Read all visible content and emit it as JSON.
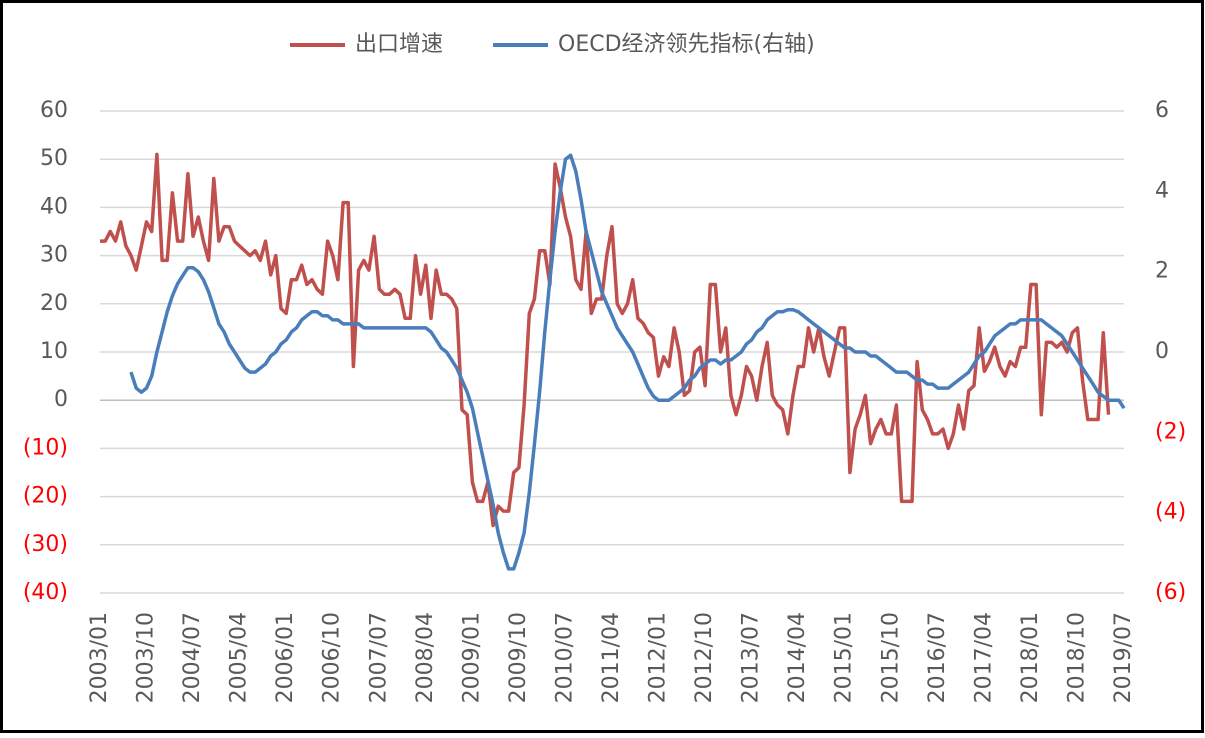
{
  "chart_data": {
    "type": "line",
    "categories": [
      "2003/01",
      null,
      null,
      null,
      null,
      null,
      null,
      null,
      null,
      "2003/10",
      null,
      null,
      null,
      null,
      null,
      null,
      null,
      null,
      "2004/07",
      null,
      null,
      null,
      null,
      null,
      null,
      null,
      null,
      "2005/04",
      null,
      null,
      null,
      null,
      null,
      null,
      null,
      null,
      "2006/01",
      null,
      null,
      null,
      null,
      null,
      null,
      null,
      null,
      "2006/10",
      null,
      null,
      null,
      null,
      null,
      null,
      null,
      null,
      "2007/07",
      null,
      null,
      null,
      null,
      null,
      null,
      null,
      null,
      "2008/04",
      null,
      null,
      null,
      null,
      null,
      null,
      null,
      null,
      "2009/01",
      null,
      null,
      null,
      null,
      null,
      null,
      null,
      null,
      "2009/10",
      null,
      null,
      null,
      null,
      null,
      null,
      null,
      null,
      "2010/07",
      null,
      null,
      null,
      null,
      null,
      null,
      null,
      null,
      "2011/04",
      null,
      null,
      null,
      null,
      null,
      null,
      null,
      null,
      "2012/01",
      null,
      null,
      null,
      null,
      null,
      null,
      null,
      null,
      "2012/10",
      null,
      null,
      null,
      null,
      null,
      null,
      null,
      null,
      "2013/07",
      null,
      null,
      null,
      null,
      null,
      null,
      null,
      null,
      "2014/04",
      null,
      null,
      null,
      null,
      null,
      null,
      null,
      null,
      "2015/01",
      null,
      null,
      null,
      null,
      null,
      null,
      null,
      null,
      "2015/10",
      null,
      null,
      null,
      null,
      null,
      null,
      null,
      null,
      "2016/07",
      null,
      null,
      null,
      null,
      null,
      null,
      null,
      null,
      "2017/04",
      null,
      null,
      null,
      null,
      null,
      null,
      null,
      null,
      "2018/01",
      null,
      null,
      null,
      null,
      null,
      null,
      null,
      null,
      "2018/10",
      null,
      null,
      null,
      null,
      null,
      null,
      null,
      null,
      "2019/07"
    ],
    "series": [
      {
        "name": "出口增速",
        "color": "#c0504d",
        "values": [
          33,
          33,
          35,
          33,
          37,
          32,
          30,
          27,
          32,
          37,
          35,
          51,
          29,
          29,
          43,
          33,
          33,
          47,
          34,
          38,
          33,
          29,
          46,
          33,
          36,
          36,
          33,
          32,
          31,
          30,
          31,
          29,
          33,
          26,
          30,
          19,
          18,
          25,
          25,
          28,
          24,
          25,
          23,
          22,
          33,
          30,
          25,
          41,
          41,
          7,
          27,
          29,
          27,
          34,
          23,
          22,
          22,
          23,
          22,
          17,
          17,
          30,
          22,
          28,
          17,
          27,
          22,
          22,
          21,
          19,
          -2,
          -3,
          -17,
          -21,
          -21,
          -17,
          -26,
          -22,
          -23,
          -23,
          -15,
          -14,
          -1,
          18,
          21,
          31,
          31,
          24,
          49,
          44,
          38,
          34,
          25,
          23,
          35,
          18,
          21,
          21,
          30,
          36,
          20,
          18,
          20,
          25,
          17,
          16,
          14,
          13,
          5,
          9,
          7,
          15,
          10,
          1,
          2,
          10,
          11,
          3,
          24,
          24,
          10,
          15,
          1,
          -3,
          1,
          7,
          5,
          0,
          7,
          12,
          1,
          -1,
          -2,
          -7,
          1,
          7,
          7,
          15,
          10,
          15,
          9,
          5,
          10,
          15,
          15,
          -15,
          -6,
          -3,
          1,
          -9,
          -6,
          -4,
          -7,
          -7,
          -1,
          -21,
          -21,
          -21,
          8,
          -2,
          -4,
          -7,
          -7,
          -6,
          -10,
          -7,
          -1,
          -6,
          2,
          3,
          15,
          6,
          8,
          11,
          7,
          5,
          8,
          7,
          11,
          11,
          24,
          24,
          -3,
          12,
          12,
          11,
          12,
          10,
          14,
          15,
          4,
          -4,
          -4,
          -4,
          14,
          -3,
          null,
          null,
          null
        ]
      },
      {
        "name": "OECD经济领先指标(右轴)",
        "color": "#4a7ebb",
        "axis": "y2",
        "values": [
          null,
          null,
          null,
          null,
          null,
          null,
          -0.5,
          -0.9,
          -1.0,
          -0.9,
          -0.6,
          0.0,
          0.5,
          1.0,
          1.4,
          1.7,
          1.9,
          2.1,
          2.1,
          2.0,
          1.8,
          1.5,
          1.1,
          0.7,
          0.5,
          0.2,
          0.0,
          -0.2,
          -0.4,
          -0.5,
          -0.5,
          -0.4,
          -0.3,
          -0.1,
          0.0,
          0.2,
          0.3,
          0.5,
          0.6,
          0.8,
          0.9,
          1.0,
          1.0,
          0.9,
          0.9,
          0.8,
          0.8,
          0.7,
          0.7,
          0.7,
          0.7,
          0.6,
          0.6,
          0.6,
          0.6,
          0.6,
          0.6,
          0.6,
          0.6,
          0.6,
          0.6,
          0.6,
          0.6,
          0.6,
          0.5,
          0.3,
          0.1,
          0.0,
          -0.2,
          -0.4,
          -0.7,
          -1.0,
          -1.4,
          -2.0,
          -2.6,
          -3.2,
          -3.8,
          -4.5,
          -5.0,
          -5.4,
          -5.4,
          -5.0,
          -4.5,
          -3.5,
          -2.3,
          -1.0,
          0.5,
          1.8,
          3.0,
          4.0,
          4.8,
          4.9,
          4.5,
          3.8,
          3.0,
          2.5,
          2.0,
          1.5,
          1.2,
          0.9,
          0.6,
          0.4,
          0.2,
          0.0,
          -0.3,
          -0.6,
          -0.9,
          -1.1,
          -1.2,
          -1.2,
          -1.2,
          -1.1,
          -1.0,
          -0.9,
          -0.7,
          -0.6,
          -0.4,
          -0.3,
          -0.2,
          -0.2,
          -0.3,
          -0.2,
          -0.2,
          -0.1,
          0.0,
          0.2,
          0.3,
          0.5,
          0.6,
          0.8,
          0.9,
          1.0,
          1.0,
          1.05,
          1.05,
          1.0,
          0.9,
          0.8,
          0.7,
          0.6,
          0.5,
          0.4,
          0.3,
          0.2,
          0.1,
          0.1,
          0.0,
          0.0,
          0.0,
          -0.1,
          -0.1,
          -0.2,
          -0.3,
          -0.4,
          -0.5,
          -0.5,
          -0.5,
          -0.6,
          -0.7,
          -0.7,
          -0.8,
          -0.8,
          -0.9,
          -0.9,
          -0.9,
          -0.8,
          -0.7,
          -0.6,
          -0.5,
          -0.3,
          -0.1,
          0.0,
          0.2,
          0.4,
          0.5,
          0.6,
          0.7,
          0.7,
          0.8,
          0.8,
          0.8,
          0.8,
          0.8,
          0.7,
          0.6,
          0.5,
          0.4,
          0.2,
          0.0,
          -0.2,
          -0.4,
          -0.6,
          -0.8,
          -1.0,
          -1.1,
          -1.2,
          -1.2,
          -1.2,
          -1.4
        ]
      }
    ],
    "ylim": [
      -40,
      60
    ],
    "yticks": [
      60,
      50,
      40,
      30,
      20,
      10,
      0,
      {
        "value": -10,
        "label": "(10)"
      },
      {
        "value": -20,
        "label": "(20)"
      },
      {
        "value": -30,
        "label": "(30)"
      },
      {
        "value": -40,
        "label": "(40)"
      }
    ],
    "y2lim": [
      -6,
      6
    ],
    "y2ticks": [
      6,
      4,
      2,
      0,
      {
        "value": -2,
        "label": "(2)"
      },
      {
        "value": -4,
        "label": "(4)"
      },
      {
        "value": -6,
        "label": "(6)"
      }
    ],
    "grid": true,
    "legend": "top"
  }
}
